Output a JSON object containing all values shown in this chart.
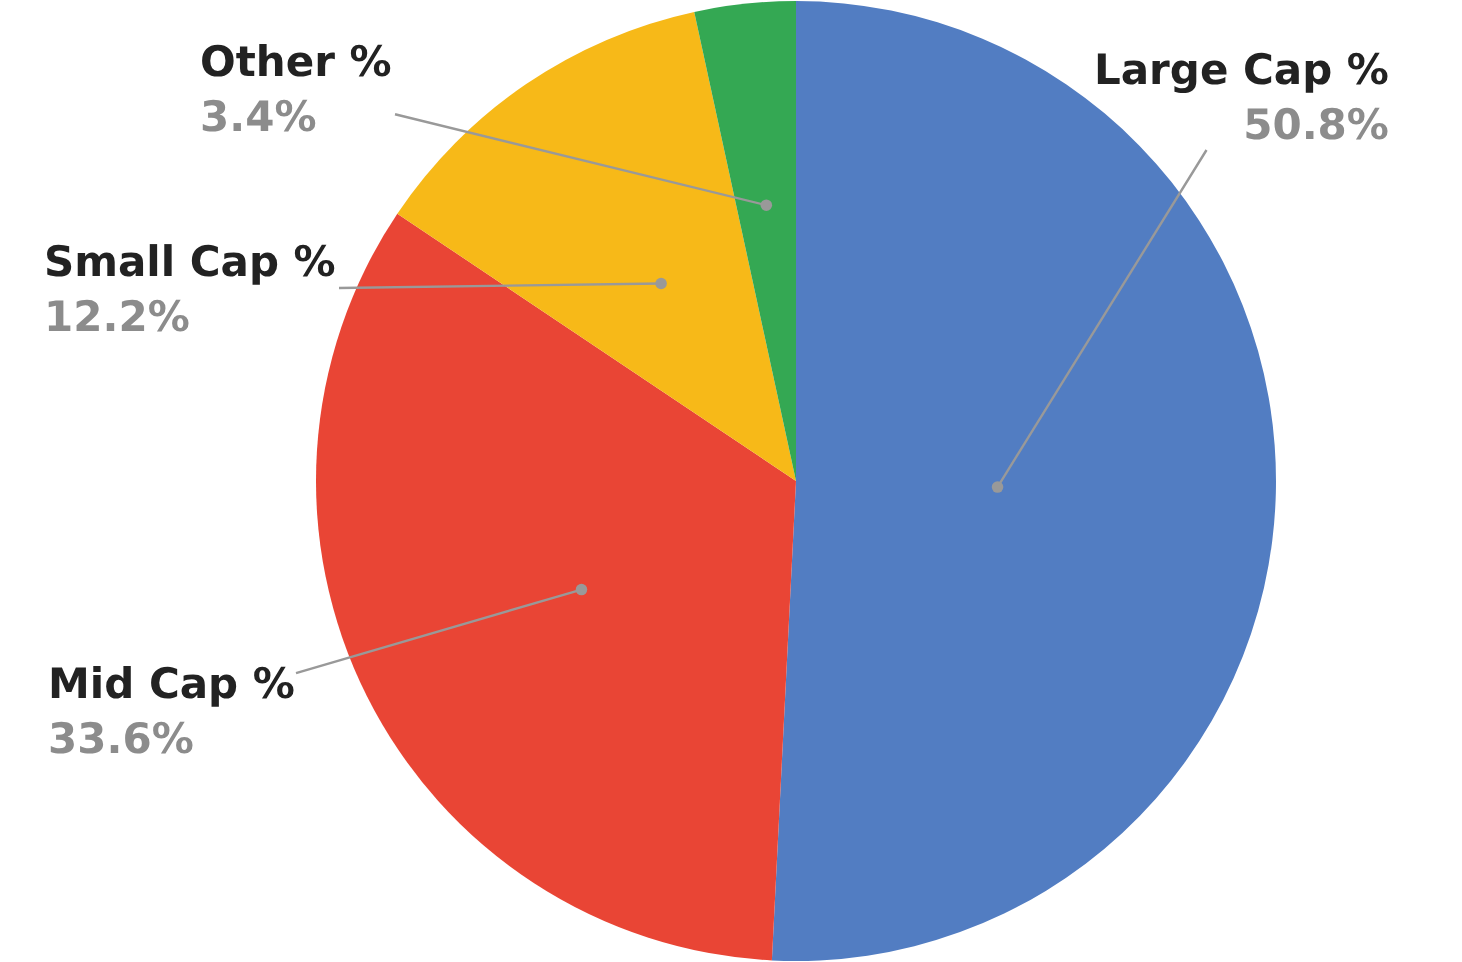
{
  "chart_data": {
    "type": "pie",
    "categories": [
      "Large Cap %",
      "Mid Cap %",
      "Small Cap %",
      "Other %"
    ],
    "values": [
      50.8,
      33.6,
      12.2,
      3.4
    ],
    "value_labels": [
      "50.8%",
      "33.6%",
      "12.2%",
      "3.4%"
    ],
    "colors": [
      "#527dc2",
      "#e94535",
      "#f7b918",
      "#34a853"
    ],
    "legend": false
  }
}
